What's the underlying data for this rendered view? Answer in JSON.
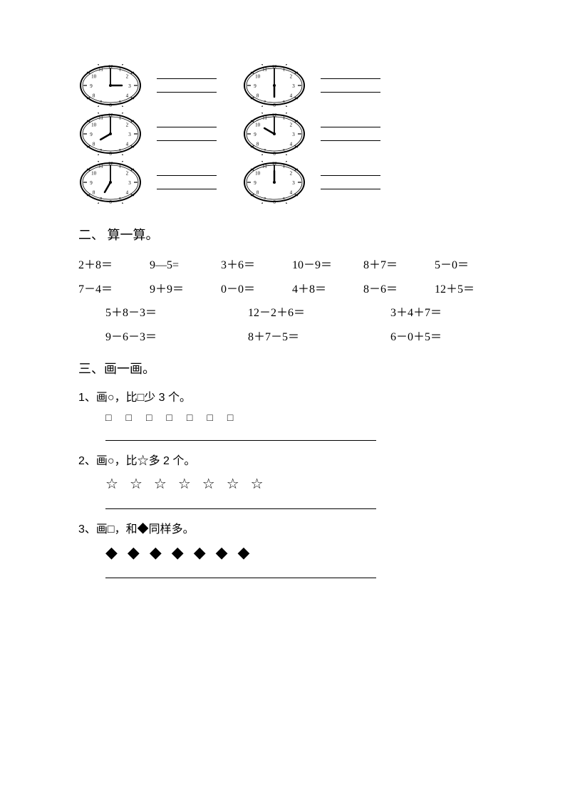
{
  "clocks": {
    "lineColor": "#000000",
    "faceColor": "#ffffff",
    "items": [
      {
        "hour": 3,
        "minute": 0
      },
      {
        "hour": 6,
        "minute": 0
      },
      {
        "hour": 8,
        "minute": 0
      },
      {
        "hour": 10,
        "minute": 0
      },
      {
        "hour": 7,
        "minute": 0
      },
      {
        "hour": 12,
        "minute": 0
      }
    ]
  },
  "section2": {
    "title": "二、 算一算。",
    "row1": [
      "2＋8＝",
      "9—5=",
      "3＋6＝",
      "10－9＝",
      "8＋7＝",
      "5－0＝"
    ],
    "row2": [
      "7－4＝",
      "9＋9＝",
      "0－0＝",
      "4＋8＝",
      "8－6＝",
      "12＋5＝"
    ],
    "row3": [
      "5＋8－3＝",
      "12－2＋6＝",
      "3＋4＋7＝"
    ],
    "row4": [
      "9－6－3＝",
      "8＋7－5＝",
      "6－0＋5＝"
    ]
  },
  "section3": {
    "title": "三、画一画。",
    "q1": {
      "text": "1、画○，比□少 3 个。",
      "shape": "□",
      "count": 7
    },
    "q2": {
      "text": "2、画○，比☆多 2 个。",
      "shape": "☆",
      "count": 7
    },
    "q3": {
      "text": "3、画□，和◆同样多。",
      "shape": "◆",
      "count": 7
    }
  }
}
